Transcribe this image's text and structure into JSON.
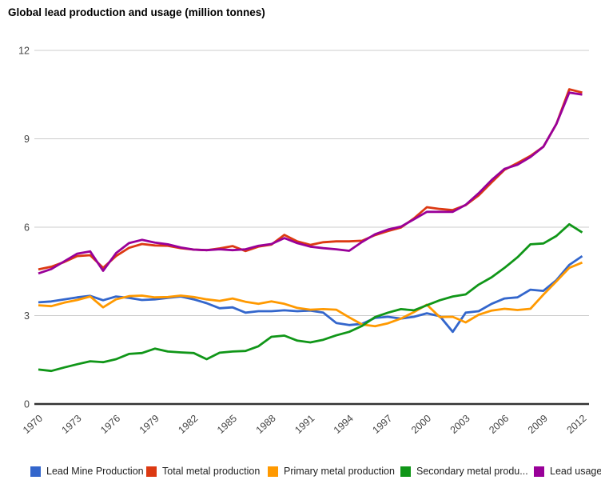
{
  "title": "Global lead production and usage (million tonnes)",
  "chart_data": {
    "type": "line",
    "title": "Global lead production and usage (million tonnes)",
    "xlabel": "",
    "ylabel": "",
    "x": [
      1970,
      1971,
      1972,
      1973,
      1974,
      1975,
      1976,
      1977,
      1978,
      1979,
      1980,
      1981,
      1982,
      1983,
      1984,
      1985,
      1986,
      1987,
      1988,
      1989,
      1990,
      1991,
      1992,
      1993,
      1994,
      1995,
      1996,
      1997,
      1998,
      1999,
      2000,
      2001,
      2002,
      2003,
      2004,
      2005,
      2006,
      2007,
      2008,
      2009,
      2010,
      2011,
      2012
    ],
    "x_tick_labels": [
      "1970",
      "1973",
      "1976",
      "1979",
      "1982",
      "1985",
      "1988",
      "1991",
      "1994",
      "1997",
      "2000",
      "2003",
      "2006",
      "2009",
      "2012"
    ],
    "y_ticks": [
      0,
      3,
      6,
      9,
      12
    ],
    "ylim": [
      0,
      12
    ],
    "grid": true,
    "legend_position": "bottom",
    "axis_text_color": "#444444",
    "gridline_color": "#cccccc",
    "baseline_color": "#333333",
    "series": [
      {
        "name": "Lead Mine Production",
        "legend_label": "Lead Mine Production",
        "color": "#3366CC",
        "values": [
          3.45,
          3.48,
          3.55,
          3.62,
          3.67,
          3.52,
          3.65,
          3.6,
          3.53,
          3.55,
          3.6,
          3.65,
          3.55,
          3.42,
          3.25,
          3.28,
          3.1,
          3.15,
          3.15,
          3.18,
          3.15,
          3.17,
          3.1,
          2.75,
          2.68,
          2.72,
          2.92,
          2.96,
          2.9,
          2.96,
          3.08,
          2.98,
          2.45,
          3.1,
          3.15,
          3.4,
          3.58,
          3.62,
          3.88,
          3.84,
          4.2,
          4.72,
          5.02
        ]
      },
      {
        "name": "Total metal production",
        "legend_label": "Total metal production",
        "color": "#DC3912",
        "values": [
          4.57,
          4.66,
          4.82,
          5.02,
          5.05,
          4.62,
          5.02,
          5.3,
          5.43,
          5.38,
          5.37,
          5.29,
          5.24,
          5.22,
          5.28,
          5.36,
          5.19,
          5.34,
          5.41,
          5.74,
          5.52,
          5.4,
          5.49,
          5.52,
          5.52,
          5.54,
          5.73,
          5.87,
          5.99,
          6.3,
          6.68,
          6.62,
          6.58,
          6.75,
          7.08,
          7.52,
          7.95,
          8.18,
          8.42,
          8.73,
          9.5,
          10.68,
          10.57
        ]
      },
      {
        "name": "Primary metal production",
        "legend_label": "Primary metal production",
        "color": "#FF9900",
        "values": [
          3.35,
          3.32,
          3.44,
          3.53,
          3.65,
          3.28,
          3.55,
          3.66,
          3.68,
          3.62,
          3.63,
          3.68,
          3.63,
          3.55,
          3.5,
          3.58,
          3.47,
          3.4,
          3.48,
          3.4,
          3.26,
          3.2,
          3.22,
          3.2,
          2.94,
          2.7,
          2.64,
          2.74,
          2.9,
          3.12,
          3.37,
          2.95,
          2.96,
          2.77,
          3.03,
          3.17,
          3.23,
          3.19,
          3.23,
          3.71,
          4.16,
          4.62,
          4.8
        ]
      },
      {
        "name": "Secondary metal production",
        "legend_label": "Secondary metal produ...",
        "color": "#109618",
        "values": [
          1.17,
          1.12,
          1.24,
          1.35,
          1.45,
          1.42,
          1.52,
          1.7,
          1.73,
          1.88,
          1.78,
          1.75,
          1.73,
          1.52,
          1.74,
          1.78,
          1.8,
          1.96,
          2.28,
          2.32,
          2.15,
          2.09,
          2.18,
          2.33,
          2.45,
          2.65,
          2.95,
          3.1,
          3.22,
          3.18,
          3.35,
          3.52,
          3.65,
          3.72,
          4.05,
          4.3,
          4.62,
          4.98,
          5.42,
          5.45,
          5.7,
          6.1,
          5.82
        ]
      },
      {
        "name": "Lead usage",
        "legend_label": "Lead usage",
        "color": "#990099",
        "values": [
          4.43,
          4.58,
          4.84,
          5.1,
          5.18,
          4.52,
          5.12,
          5.46,
          5.57,
          5.48,
          5.42,
          5.31,
          5.24,
          5.22,
          5.25,
          5.22,
          5.25,
          5.37,
          5.43,
          5.63,
          5.46,
          5.34,
          5.29,
          5.25,
          5.2,
          5.5,
          5.76,
          5.92,
          6.02,
          6.27,
          6.52,
          6.52,
          6.52,
          6.76,
          7.15,
          7.6,
          7.98,
          8.12,
          8.38,
          8.73,
          9.5,
          10.57,
          10.5
        ]
      }
    ]
  },
  "legend_item_lefts": [
    38,
    183,
    335,
    501,
    668
  ]
}
